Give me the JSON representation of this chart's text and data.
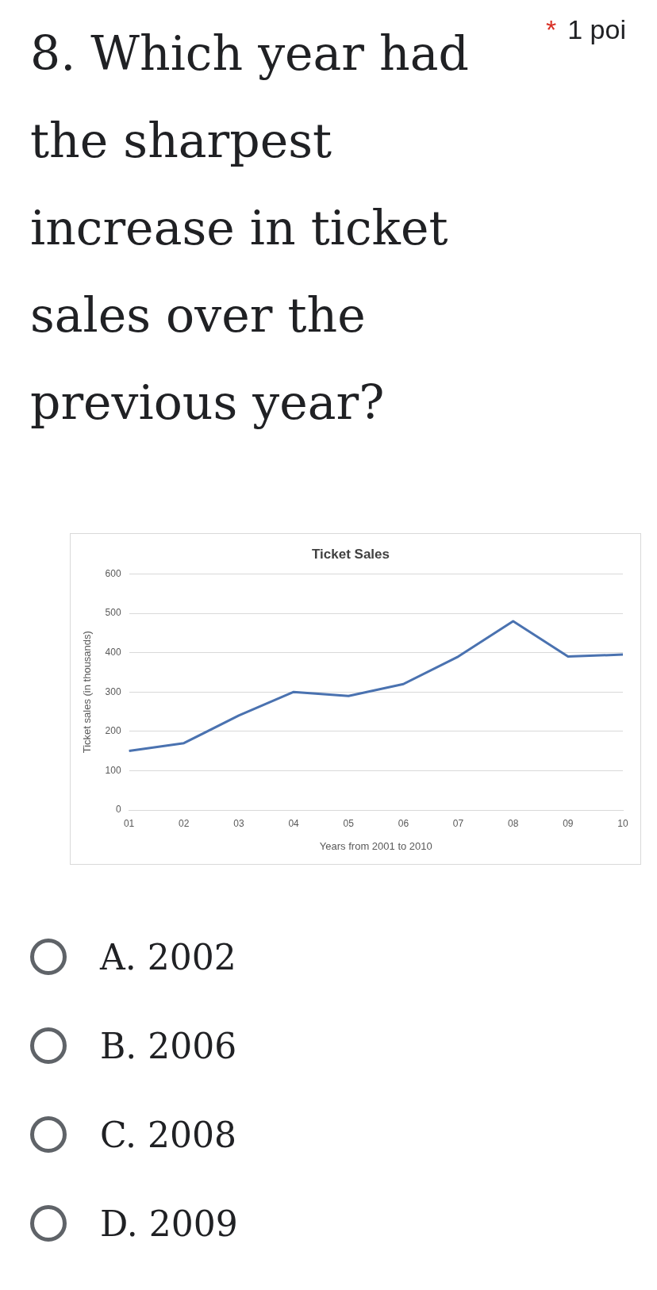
{
  "chart_data": {
    "type": "line",
    "title": "Ticket Sales",
    "xlabel": "Years from 2001 to 2010",
    "ylabel": "Ticket sales (in thousands)",
    "categories": [
      "01",
      "02",
      "03",
      "04",
      "05",
      "06",
      "07",
      "08",
      "09",
      "10"
    ],
    "series": [
      {
        "color": "#4a72b0",
        "values": [
          150,
          170,
          240,
          300,
          290,
          320,
          390,
          480,
          390,
          395
        ]
      }
    ],
    "ylim": [
      0,
      600
    ],
    "yticks": [
      0,
      100,
      200,
      300,
      400,
      500,
      600
    ],
    "grid": "y",
    "legend": false,
    "marker": "none",
    "line_style": "solid",
    "annotations": [
      "8. Which year had the sharpest increase in ticket sales over the previous year?",
      "*",
      "1 poi",
      "A. 2002",
      "B. 2006",
      "C. 2008",
      "D. 2009"
    ]
  }
}
